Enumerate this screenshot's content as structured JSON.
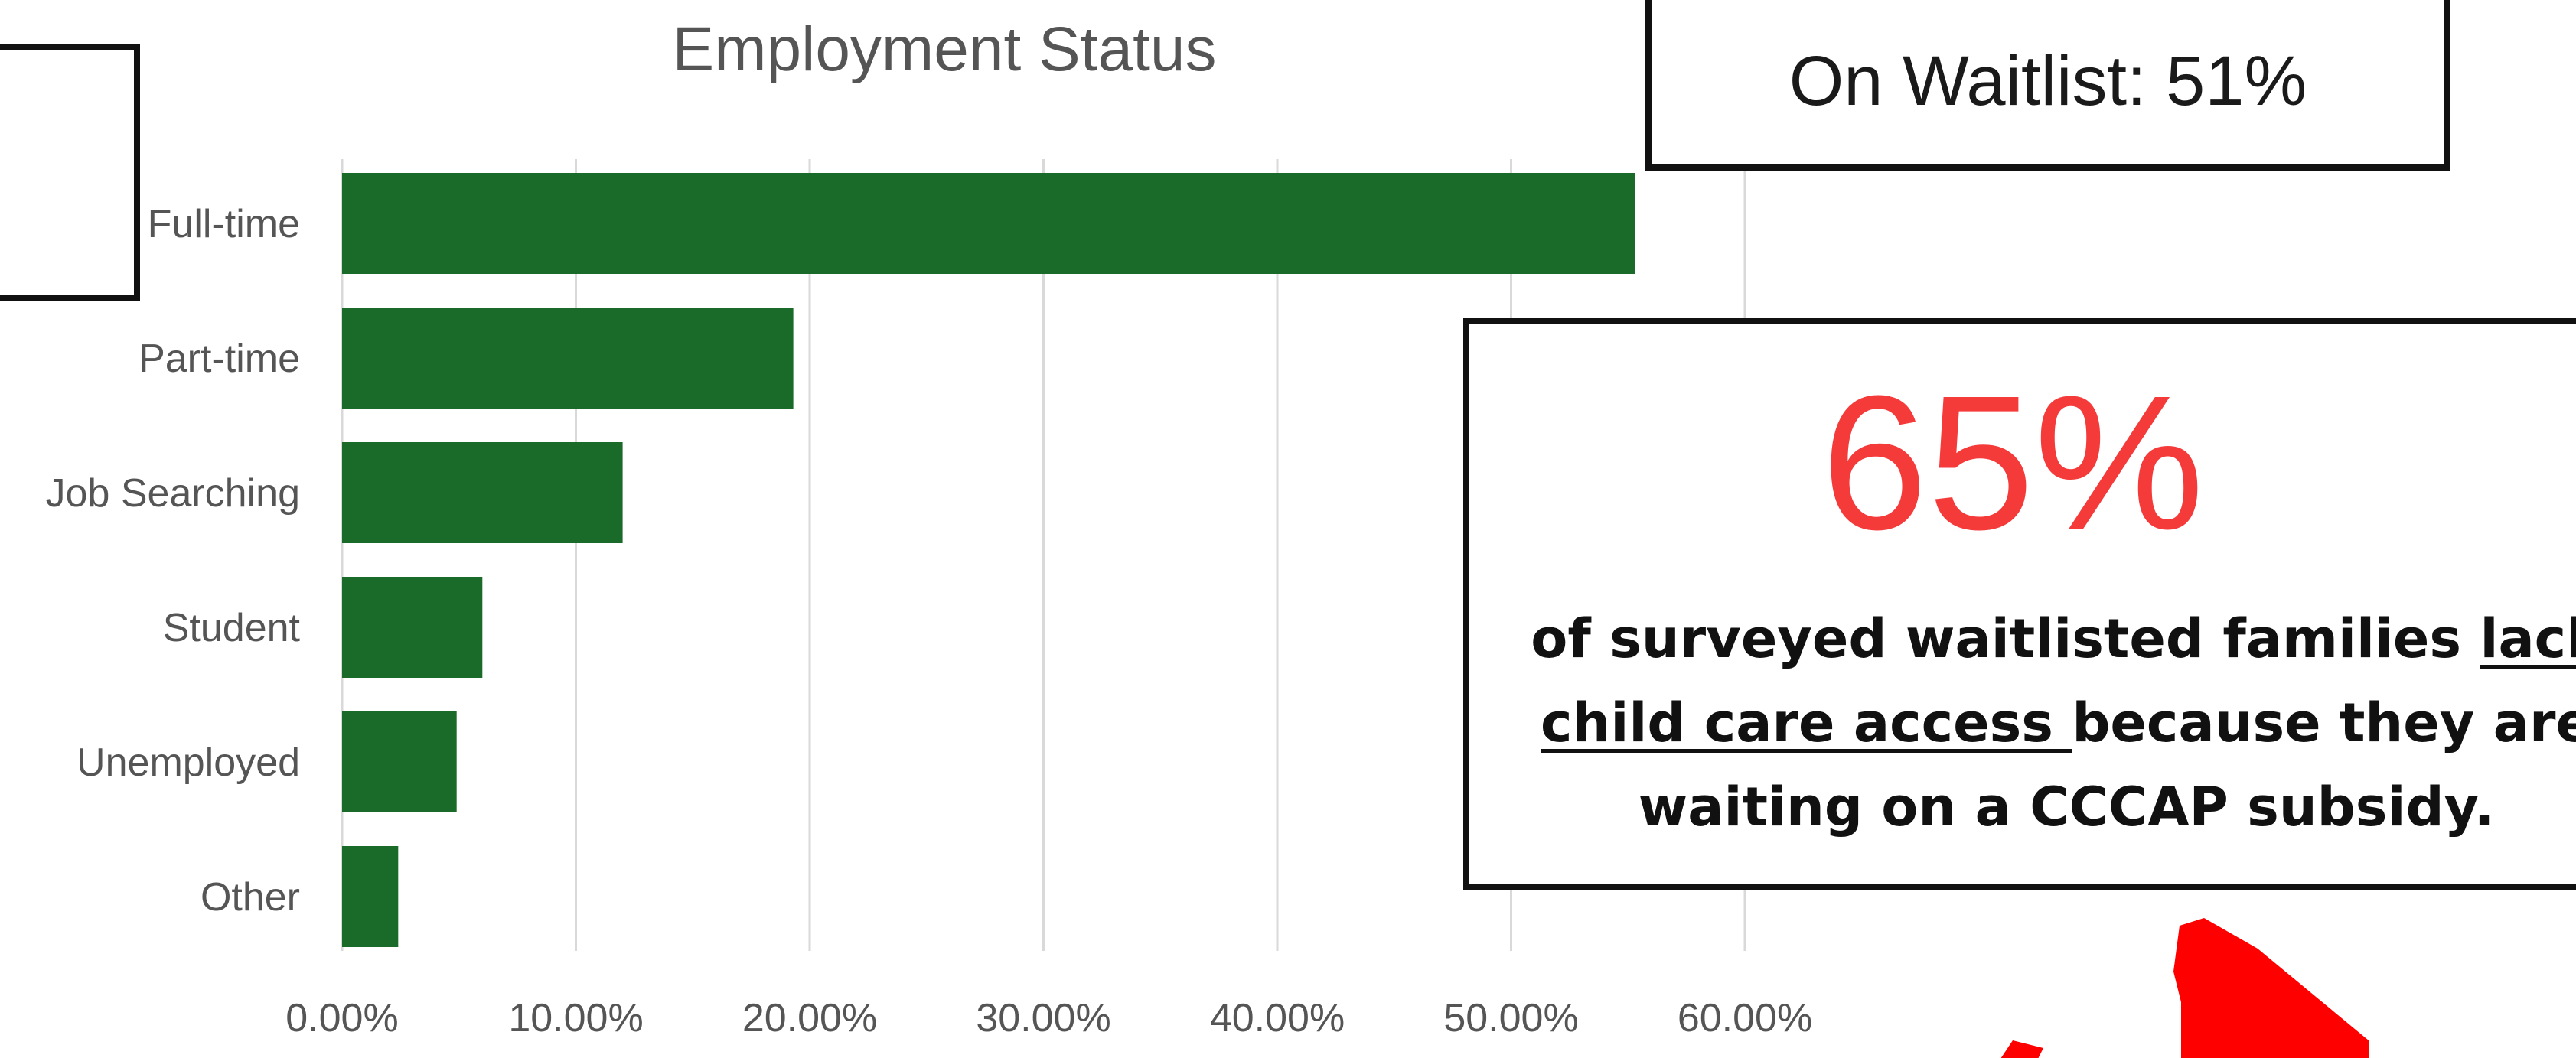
{
  "chart_data": {
    "type": "bar",
    "orientation": "horizontal",
    "title": "Employment Status",
    "categories": [
      "Full-time",
      "Part-time",
      "Job Searching",
      "Student",
      "Unemployed",
      "Other"
    ],
    "values": [
      55.3,
      19.3,
      12.0,
      6.0,
      4.9,
      2.4
    ],
    "xlim": [
      0,
      60
    ],
    "x_ticks": [
      "0.00%",
      "10.00%",
      "20.00%",
      "30.00%",
      "40.00%",
      "50.00%",
      "60.00%"
    ],
    "grid": "vertical",
    "bar_color": "#1a6b2a",
    "xlabel": "",
    "ylabel": ""
  },
  "callouts": {
    "waitlist": "On Waitlist: 51%",
    "stat_number": "65%",
    "stat_line1_pre": "of surveyed waitlisted families ",
    "stat_line1_u": "lack",
    "stat_line2_u": "child care access ",
    "stat_line2_post": "because they are",
    "stat_line3": "waiting on a CCCAP subsidy."
  },
  "colors": {
    "accent_red": "#f53a3a",
    "arrow_red": "#ff0000",
    "grid": "#d9d9d9",
    "text": "#555555"
  }
}
